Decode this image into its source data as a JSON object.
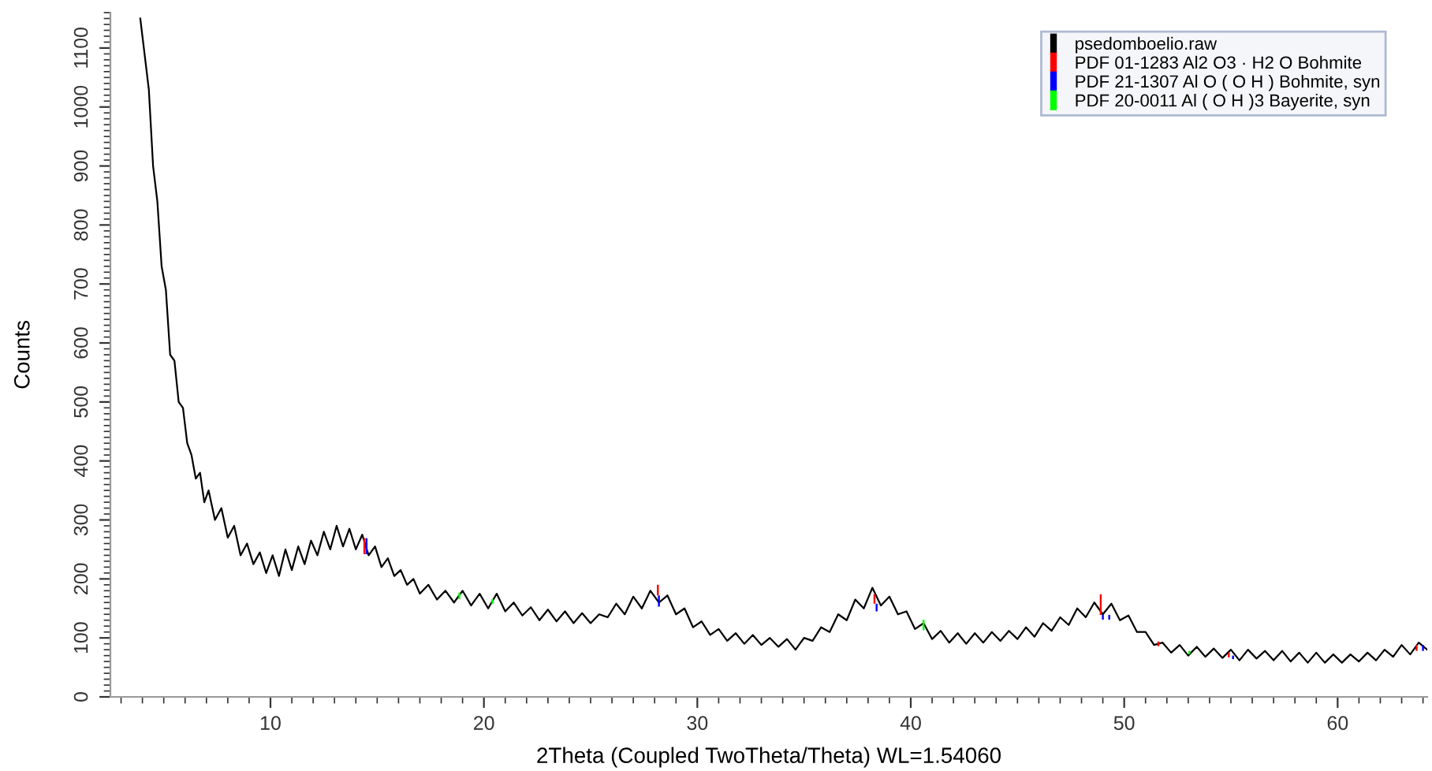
{
  "chart_data": {
    "type": "line",
    "xlabel": "2Theta (Coupled TwoTheta/Theta) WL=1.54060",
    "ylabel": "Counts",
    "xlim": [
      2.5,
      64.2
    ],
    "ylim": [
      0,
      1160
    ],
    "xticks": [
      10,
      20,
      30,
      40,
      50,
      60
    ],
    "yticks": [
      0,
      100,
      200,
      300,
      400,
      500,
      600,
      700,
      800,
      900,
      1000,
      1100
    ],
    "grid": false,
    "legend": "top right",
    "series": [
      {
        "name": "psedomboelio.raw",
        "color": "#000000",
        "x": [
          3.9,
          4.1,
          4.3,
          4.5,
          4.7,
          4.9,
          5.1,
          5.3,
          5.5,
          5.7,
          5.9,
          6.1,
          6.3,
          6.5,
          6.7,
          6.9,
          7.1,
          7.4,
          7.7,
          8.0,
          8.3,
          8.6,
          8.9,
          9.2,
          9.5,
          9.8,
          10.1,
          10.4,
          10.7,
          11.0,
          11.3,
          11.6,
          11.9,
          12.2,
          12.5,
          12.8,
          13.1,
          13.4,
          13.7,
          14.0,
          14.3,
          14.6,
          14.9,
          15.2,
          15.5,
          15.8,
          16.1,
          16.4,
          16.7,
          17.0,
          17.4,
          17.8,
          18.2,
          18.6,
          19.0,
          19.4,
          19.8,
          20.2,
          20.6,
          21.0,
          21.4,
          21.8,
          22.2,
          22.6,
          23.0,
          23.4,
          23.8,
          24.2,
          24.6,
          25.0,
          25.4,
          25.8,
          26.2,
          26.6,
          27.0,
          27.4,
          27.8,
          28.2,
          28.6,
          29.0,
          29.4,
          29.8,
          30.2,
          30.6,
          31.0,
          31.4,
          31.8,
          32.2,
          32.6,
          33.0,
          33.4,
          33.8,
          34.2,
          34.6,
          35.0,
          35.4,
          35.8,
          36.2,
          36.6,
          37.0,
          37.4,
          37.8,
          38.2,
          38.6,
          39.0,
          39.4,
          39.8,
          40.2,
          40.6,
          41.0,
          41.4,
          41.8,
          42.2,
          42.6,
          43.0,
          43.4,
          43.8,
          44.2,
          44.6,
          45.0,
          45.4,
          45.8,
          46.2,
          46.6,
          47.0,
          47.4,
          47.8,
          48.2,
          48.6,
          49.0,
          49.4,
          49.8,
          50.2,
          50.6,
          51.0,
          51.4,
          51.8,
          52.2,
          52.6,
          53.0,
          53.4,
          53.8,
          54.2,
          54.6,
          55.0,
          55.4,
          55.8,
          56.2,
          56.6,
          57.0,
          57.4,
          57.8,
          58.2,
          58.6,
          59.0,
          59.4,
          59.8,
          60.2,
          60.6,
          61.0,
          61.4,
          61.8,
          62.2,
          62.6,
          63.0,
          63.4,
          63.8,
          64.2
        ],
        "values": [
          1150,
          1090,
          1030,
          900,
          840,
          730,
          690,
          580,
          570,
          500,
          490,
          430,
          410,
          370,
          380,
          330,
          350,
          300,
          320,
          270,
          290,
          240,
          260,
          225,
          245,
          210,
          240,
          205,
          250,
          215,
          255,
          225,
          265,
          240,
          280,
          250,
          290,
          255,
          285,
          250,
          275,
          240,
          255,
          220,
          235,
          205,
          215,
          190,
          200,
          175,
          190,
          165,
          180,
          160,
          180,
          155,
          175,
          150,
          175,
          145,
          160,
          138,
          152,
          130,
          148,
          128,
          145,
          125,
          142,
          125,
          140,
          135,
          158,
          140,
          170,
          150,
          180,
          160,
          172,
          140,
          150,
          118,
          128,
          105,
          115,
          95,
          108,
          90,
          105,
          88,
          100,
          85,
          98,
          80,
          100,
          95,
          118,
          110,
          140,
          130,
          165,
          150,
          185,
          155,
          170,
          140,
          145,
          115,
          125,
          98,
          112,
          92,
          108,
          90,
          108,
          92,
          110,
          95,
          112,
          98,
          118,
          102,
          125,
          112,
          135,
          122,
          150,
          135,
          160,
          140,
          158,
          130,
          138,
          110,
          110,
          88,
          92,
          75,
          88,
          70,
          85,
          68,
          82,
          66,
          80,
          62,
          80,
          65,
          78,
          62,
          78,
          60,
          75,
          58,
          75,
          58,
          72,
          58,
          72,
          60,
          75,
          62,
          80,
          68,
          88,
          72,
          92,
          80
        ]
      },
      {
        "name": "PDF 01-1283 Al2 O3 · H2 O Bohmite",
        "type": "bar",
        "color": "#ff0000",
        "x": [
          14.4,
          28.15,
          38.3,
          48.9,
          51.6,
          54.9,
          63.7
        ],
        "base": [
          242,
          172,
          158,
          139,
          86,
          67,
          78
        ],
        "values": [
          27,
          18,
          16,
          35,
          8,
          8,
          10
        ]
      },
      {
        "name": "PDF 21-1307 Al O ( O H ) Bohmite, syn",
        "type": "bar",
        "color": "#0000ff",
        "x": [
          14.5,
          28.2,
          38.4,
          49.0,
          49.3,
          55.1,
          64.0
        ],
        "base": [
          242,
          153,
          145,
          131,
          131,
          64,
          78
        ],
        "values": [
          27,
          19,
          13,
          8,
          8,
          6,
          10
        ]
      },
      {
        "name": "PDF 20-0011 Al ( O H )3 Bayerite, syn",
        "type": "bar",
        "color": "#00ff00",
        "x": [
          18.85,
          20.4,
          40.6,
          53.05
        ],
        "base": [
          166,
          158,
          113,
          72
        ],
        "values": [
          11,
          8,
          18,
          6
        ]
      }
    ]
  }
}
